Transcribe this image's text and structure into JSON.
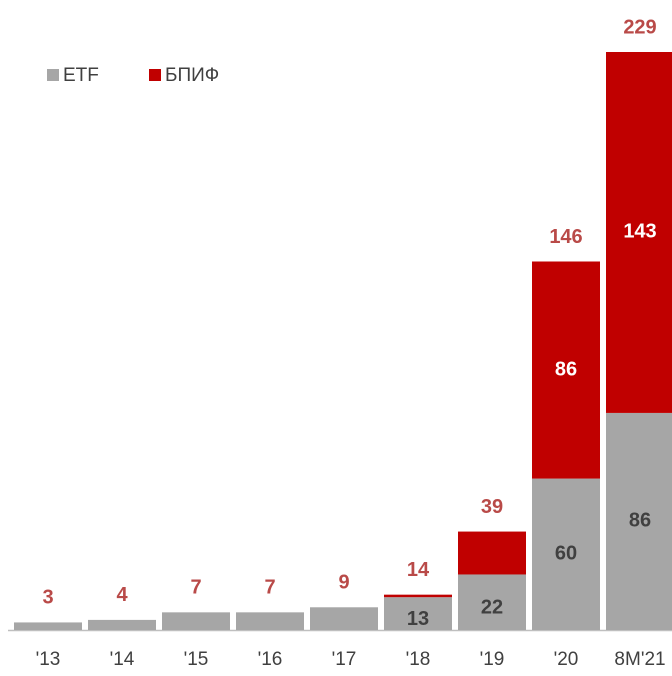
{
  "chart_data": {
    "type": "stacked_bar",
    "categories": [
      "'13",
      "'14",
      "'15",
      "'16",
      "'17",
      "'18",
      "'19",
      "'20",
      "8M'21"
    ],
    "series": [
      {
        "name": "ETF",
        "color": "#a6a6a6",
        "values": [
          3,
          4,
          7,
          7,
          9,
          13,
          22,
          60,
          86
        ],
        "value_labels": [
          null,
          null,
          null,
          null,
          null,
          "13",
          "22",
          "60",
          "86"
        ],
        "label_color": "#404040"
      },
      {
        "name": "БПИФ",
        "color": "#c00000",
        "values": [
          0,
          0,
          0,
          0,
          0,
          1,
          17,
          86,
          143
        ],
        "value_labels": [
          null,
          null,
          null,
          null,
          null,
          null,
          null,
          "86",
          "143"
        ],
        "label_color": "#ffffff"
      }
    ],
    "totals": [
      3,
      4,
      7,
      7,
      9,
      14,
      39,
      146,
      229
    ],
    "totals_color": "#b94a48",
    "ylim": [
      0,
      229
    ],
    "legend": "top-left"
  }
}
